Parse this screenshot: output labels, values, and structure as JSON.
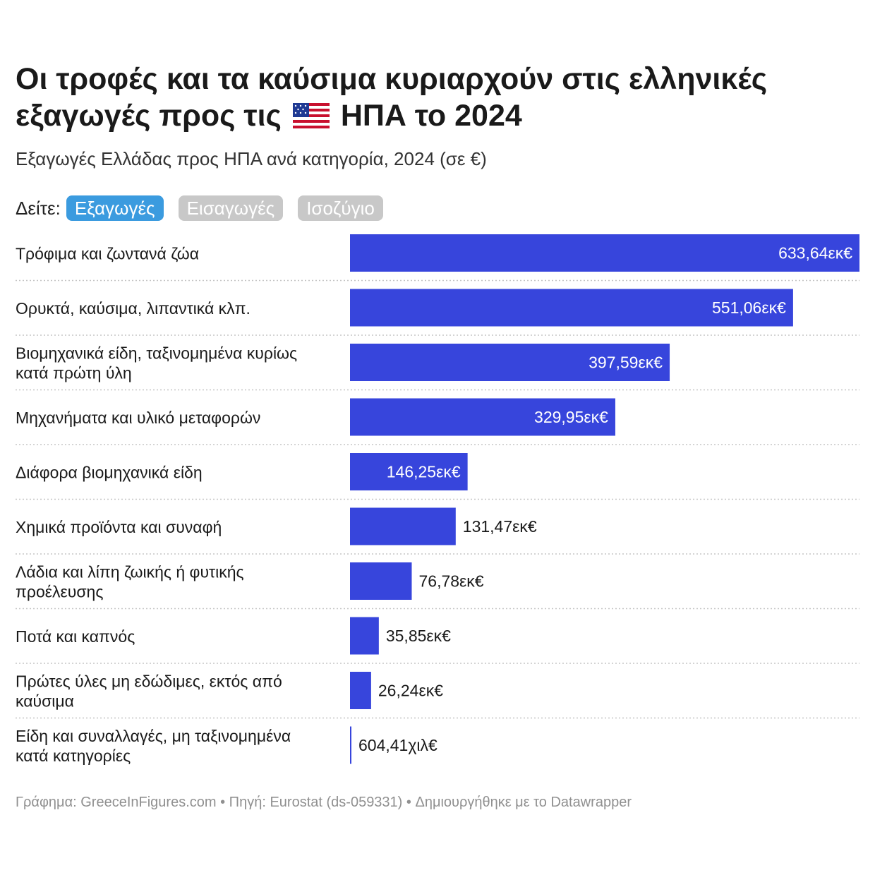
{
  "title_line1": "Οι τροφές και τα καύσιμα κυριαρχούν στις ελληνικές",
  "title_line2_pre": "εξαγωγές προς τις",
  "title_line2_post": "ΗΠΑ το 2024",
  "subtitle": "Εξαγωγές Ελλάδας προς ΗΠΑ ανά κατηγορία, 2024 (σε €)",
  "toggle": {
    "label": "Δείτε:",
    "options": [
      "Εξαγωγές",
      "Εισαγωγές",
      "Ισοζύγιο"
    ],
    "selected": "Εξαγωγές"
  },
  "colors": {
    "bar": "#3745dc",
    "toggle_active": "#3b9bdf",
    "toggle_inactive": "#c8c8c8"
  },
  "chart_data": {
    "type": "bar",
    "orientation": "horizontal",
    "categories": [
      [
        "Τρόφιμα και ζωντανά ζώα"
      ],
      [
        "Ορυκτά, καύσιμα, λιπαντικά κλπ."
      ],
      [
        "Βιομηχανικά είδη, ταξινομημένα κυρίως",
        "κατά πρώτη ύλη"
      ],
      [
        "Μηχανήματα και υλικό μεταφορών"
      ],
      [
        "Διάφορα βιομηχανικά είδη"
      ],
      [
        "Χημικά προϊόντα και συναφή"
      ],
      [
        "Λάδια και λίπη ζωικής ή φυτικής",
        "προέλευσης"
      ],
      [
        "Ποτά και καπνός"
      ],
      [
        "Πρώτες ύλες μη εδώδιμες, εκτός από",
        "καύσιμα"
      ],
      [
        "Είδη και συναλλαγές, μη ταξινομημένα",
        "κατά κατηγορίες"
      ]
    ],
    "values": [
      633.64,
      551.06,
      397.59,
      329.95,
      146.25,
      131.47,
      76.78,
      35.85,
      26.24,
      0.60441
    ],
    "unit": "εκατομμύρια €",
    "value_labels": [
      "633,64εκ€",
      "551,06εκ€",
      "397,59εκ€",
      "329,95εκ€",
      "146,25εκ€",
      "131,47εκ€",
      "76,78εκ€",
      "35,85εκ€",
      "26,24εκ€",
      "604,41χιλ€"
    ],
    "xlim": [
      0,
      633.64
    ],
    "grid": false,
    "legend": "none"
  },
  "footer": "Γράφημα: GreeceInFigures.com • Πηγή: Eurostat (ds-059331) • Δημιουργήθηκε με το Datawrapper"
}
